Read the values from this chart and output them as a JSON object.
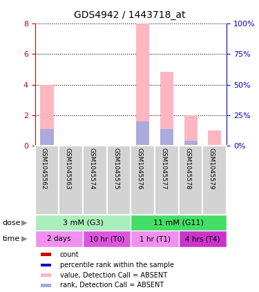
{
  "title": "GDS4942 / 1443718_at",
  "samples": [
    "GSM1045562",
    "GSM1045563",
    "GSM1045574",
    "GSM1045575",
    "GSM1045576",
    "GSM1045577",
    "GSM1045578",
    "GSM1045579"
  ],
  "pink_bar_heights": [
    4.0,
    0.0,
    0.0,
    0.0,
    8.0,
    4.85,
    2.0,
    1.0
  ],
  "blue_bar_heights": [
    1.1,
    0.0,
    0.0,
    0.0,
    1.6,
    1.1,
    0.35,
    0.0
  ],
  "ylim_left": [
    0,
    8
  ],
  "ylim_right": [
    0,
    100
  ],
  "yticks_left": [
    0,
    2,
    4,
    6,
    8
  ],
  "yticks_right": [
    0,
    25,
    50,
    75,
    100
  ],
  "dose_groups": [
    {
      "label": "3 mM (G3)",
      "start": 0,
      "end": 4,
      "color": "#aaeebb"
    },
    {
      "label": "11 mM (G11)",
      "start": 4,
      "end": 8,
      "color": "#44dd66"
    }
  ],
  "time_groups": [
    {
      "label": "2 days",
      "start": 0,
      "end": 2,
      "color": "#f090f0"
    },
    {
      "label": "10 hr (T0)",
      "start": 2,
      "end": 4,
      "color": "#dd55dd"
    },
    {
      "label": "1 hr (T1)",
      "start": 4,
      "end": 6,
      "color": "#f090f0"
    },
    {
      "label": "4 hrs (T4)",
      "start": 6,
      "end": 8,
      "color": "#cc33cc"
    }
  ],
  "legend_items": [
    {
      "color": "#cc0000",
      "label": "count"
    },
    {
      "color": "#0000cc",
      "label": "percentile rank within the sample"
    },
    {
      "color": "#ffb6c1",
      "label": "value, Detection Call = ABSENT"
    },
    {
      "color": "#aaaadd",
      "label": "rank, Detection Call = ABSENT"
    }
  ],
  "left_axis_color": "#cc0000",
  "right_axis_color": "#0000cc",
  "bar_pink_color": "#ffb6c1",
  "bar_blue_color": "#aaaadd",
  "bar_width": 0.55,
  "sample_box_color": "#d3d3d3",
  "sample_box_edge": "#ffffff"
}
